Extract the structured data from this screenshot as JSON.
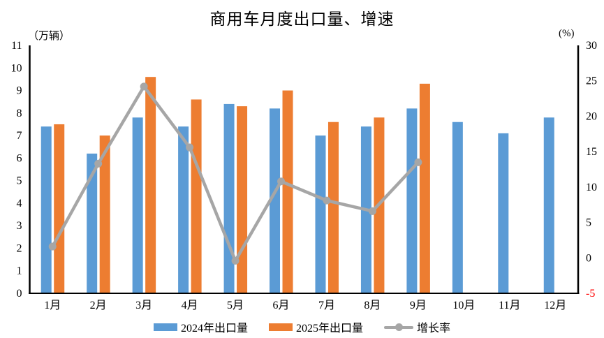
{
  "chart_data": {
    "type": "combo_bar_line",
    "title": "商用车月度出口量、增速",
    "categories": [
      "1月",
      "2月",
      "3月",
      "4月",
      "5月",
      "6月",
      "7月",
      "8月",
      "9月",
      "10月",
      "11月",
      "12月"
    ],
    "series": [
      {
        "name": "2024年出口量",
        "type": "bar",
        "axis": "left",
        "color": "#5B9BD5",
        "values": [
          7.4,
          6.2,
          7.8,
          7.4,
          8.4,
          8.2,
          7.0,
          7.4,
          8.2,
          7.6,
          7.1,
          7.8
        ]
      },
      {
        "name": "2025年出口量",
        "type": "bar",
        "axis": "left",
        "color": "#ED7D31",
        "values": [
          7.5,
          7.0,
          9.6,
          8.6,
          8.3,
          9.0,
          7.6,
          7.8,
          9.3,
          null,
          null,
          null
        ]
      },
      {
        "name": "增长率",
        "type": "line",
        "axis": "right",
        "color": "#A6A6A6",
        "values": [
          1.6,
          13.3,
          24.2,
          15.6,
          -0.4,
          10.8,
          8.1,
          6.6,
          13.5,
          null,
          null,
          null
        ]
      }
    ],
    "left_axis": {
      "unit": "（万辆）",
      "min": 0,
      "max": 11,
      "ticks": [
        0,
        1,
        2,
        3,
        4,
        5,
        6,
        7,
        8,
        9,
        10,
        11
      ]
    },
    "right_axis": {
      "unit": "(%)",
      "min": -5,
      "max": 30,
      "ticks": [
        -5,
        0,
        5,
        10,
        15,
        20,
        25,
        30
      ],
      "negative_tick_color": "#FF0000"
    },
    "grid": false,
    "legend_position": "bottom",
    "axis_line_color": "#000000",
    "background_color": "#FFFFFF"
  }
}
